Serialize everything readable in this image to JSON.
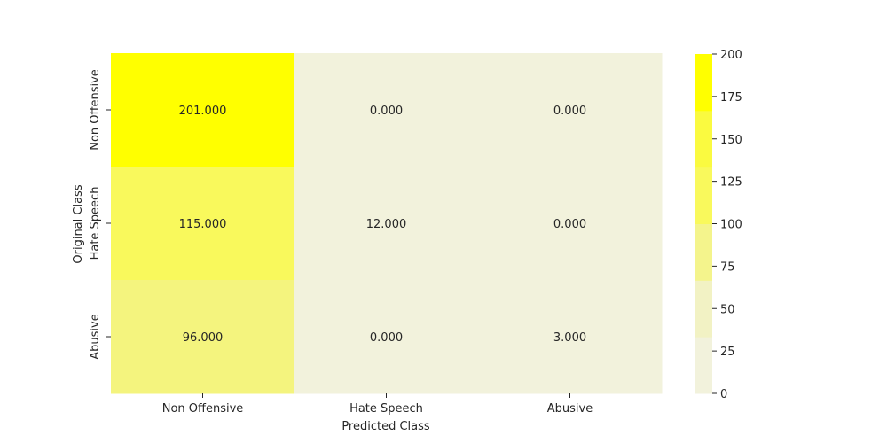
{
  "chart_data": {
    "type": "heatmap",
    "title": "",
    "xlabel": "Predicted Class",
    "ylabel": "Original Class",
    "x_categories": [
      "Non Offensive",
      "Hate Speech",
      "Abusive"
    ],
    "y_categories": [
      "Non Offensive",
      "Hate Speech",
      "Abusive"
    ],
    "values": [
      [
        201,
        0,
        0
      ],
      [
        115,
        12,
        0
      ],
      [
        96,
        0,
        3
      ]
    ],
    "value_labels": [
      [
        "201.000",
        "0.000",
        "0.000"
      ],
      [
        "115.000",
        "12.000",
        "0.000"
      ],
      [
        "96.000",
        "0.000",
        "3.000"
      ]
    ],
    "colorbar": {
      "range": [
        0,
        200
      ],
      "ticks": [
        "0",
        "25",
        "50",
        "75",
        "100",
        "125",
        "150",
        "175",
        "200"
      ],
      "bins": [
        {
          "from": 0,
          "to": 33.33,
          "color": "#f2f2dc"
        },
        {
          "from": 33.33,
          "to": 66.67,
          "color": "#f2f2c4"
        },
        {
          "from": 66.67,
          "to": 100,
          "color": "#f4f48c"
        },
        {
          "from": 100,
          "to": 133.33,
          "color": "#f9f95c"
        },
        {
          "from": 133.33,
          "to": 166.67,
          "color": "#fafa40"
        },
        {
          "from": 166.67,
          "to": 200,
          "color": "#ffff00"
        }
      ]
    },
    "cell_colors": [
      [
        "#ffff00",
        "#f2f2dc",
        "#f2f2dc"
      ],
      [
        "#f9f95c",
        "#f2f2dc",
        "#f2f2dc"
      ],
      [
        "#f4f47e",
        "#f2f2dc",
        "#f2f2dc"
      ]
    ],
    "grid": false,
    "legend": "colorbar-right"
  }
}
